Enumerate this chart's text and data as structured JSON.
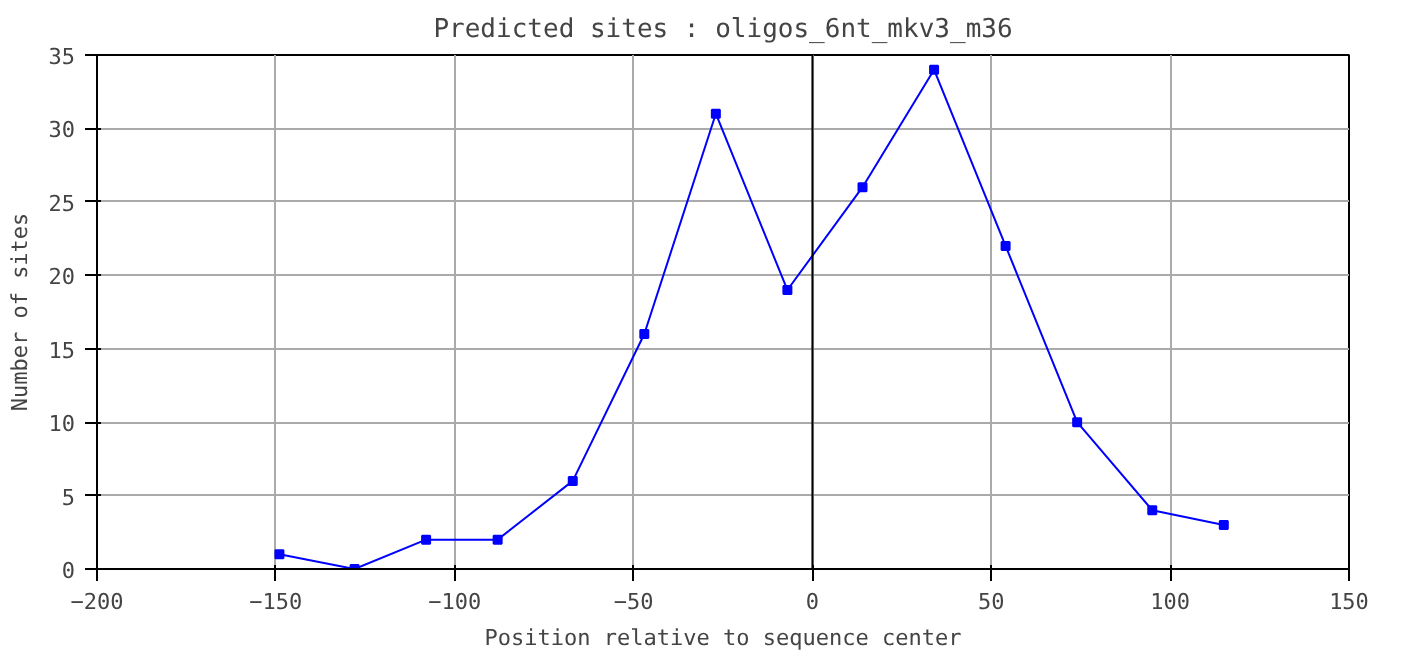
{
  "chart_data": {
    "type": "line",
    "title": "Predicted sites : oligos_6nt_mkv3_m36",
    "xlabel": "Position relative to sequence center",
    "ylabel": "Number of sites",
    "x": [
      -149,
      -128,
      -108,
      -88,
      -67,
      -47,
      -27,
      -7,
      14,
      34,
      54,
      74,
      95,
      115
    ],
    "series": [
      {
        "color": "#0000ff",
        "values": [
          1,
          0,
          2,
          2,
          6,
          16,
          31,
          19,
          26,
          34,
          22,
          10,
          4,
          3
        ]
      }
    ],
    "xlim": [
      -200,
      150
    ],
    "xticks": [
      -200,
      -150,
      -100,
      -50,
      0,
      50,
      100,
      150
    ],
    "ylim": [
      0,
      35
    ],
    "yticks": [
      0,
      5,
      10,
      15,
      20,
      25,
      30,
      35
    ],
    "ref_lines": [
      {
        "axis": "x",
        "value": 0,
        "color": "#000000"
      }
    ],
    "grid": true,
    "marker": "square",
    "line_style": "solid"
  }
}
